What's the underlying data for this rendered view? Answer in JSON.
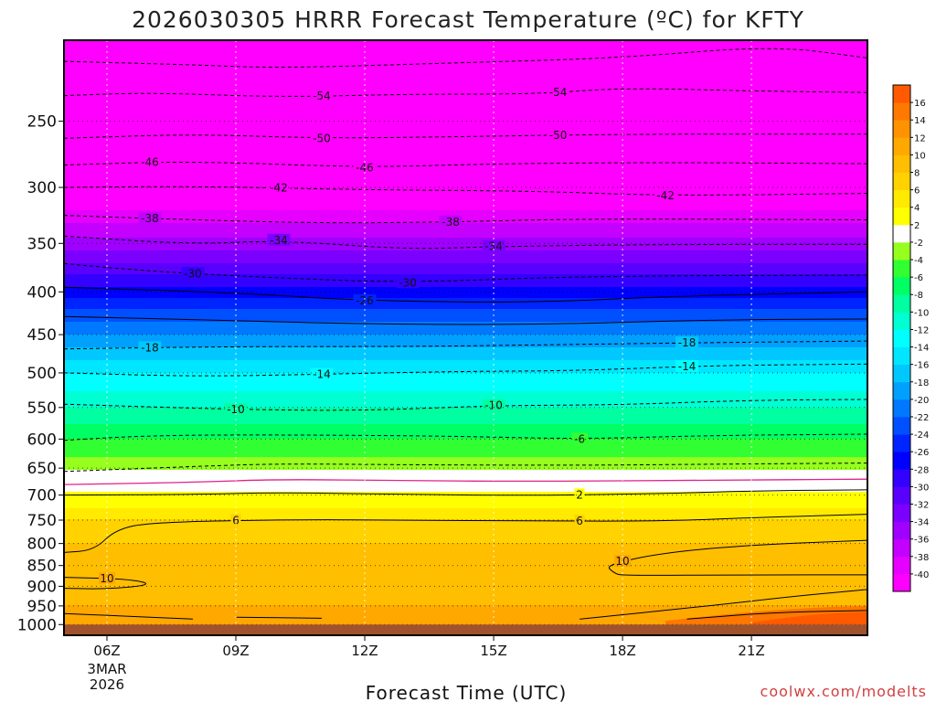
{
  "title": "2026030305 HRRR Forecast Temperature (ºC) for KFTY",
  "credit": "coolwx.com/modelts",
  "colors": {
    "credit": "#d23f3f",
    "plot_border": "#000000",
    "freezing_line": "#e0218a",
    "ground": "#a0522d"
  },
  "chart_data": {
    "type": "heatmap",
    "title": "2026030305 HRRR Forecast Temperature (ºC) for KFTY",
    "xlabel": "Forecast Time (UTC)",
    "ylabel": "",
    "x_range_hours": [
      5,
      23.7
    ],
    "y_range_hpa": [
      200,
      1030
    ],
    "y_scale": "log-pressure",
    "y_ticks": [
      250,
      300,
      350,
      400,
      450,
      500,
      550,
      600,
      650,
      700,
      750,
      800,
      850,
      900,
      950,
      1000
    ],
    "x_ticks": [
      {
        "hour": 6,
        "label": "06Z",
        "date_line1": "3MAR",
        "date_line2": "2026"
      },
      {
        "hour": 9,
        "label": "09Z"
      },
      {
        "hour": 12,
        "label": "12Z"
      },
      {
        "hour": 15,
        "label": "15Z"
      },
      {
        "hour": 18,
        "label": "18Z"
      },
      {
        "hour": 21,
        "label": "21Z"
      }
    ],
    "ground_pressure_hpa": 1000,
    "temperature_profile": [
      {
        "p": 215,
        "t": -60
      },
      {
        "p": 230,
        "t": -56
      },
      {
        "p": 250,
        "t": -52
      },
      {
        "p": 275,
        "t": -48
      },
      {
        "p": 300,
        "t": -44
      },
      {
        "p": 325,
        "t": -39
      },
      {
        "p": 350,
        "t": -35
      },
      {
        "p": 375,
        "t": -31
      },
      {
        "p": 400,
        "t": -27
      },
      {
        "p": 425,
        "t": -23
      },
      {
        "p": 450,
        "t": -20
      },
      {
        "p": 475,
        "t": -17
      },
      {
        "p": 500,
        "t": -14
      },
      {
        "p": 525,
        "t": -12
      },
      {
        "p": 550,
        "t": -10
      },
      {
        "p": 575,
        "t": -8
      },
      {
        "p": 600,
        "t": -6
      },
      {
        "p": 625,
        "t": -4.5
      },
      {
        "p": 650,
        "t": -2.5
      },
      {
        "p": 660,
        "t": -1
      },
      {
        "p": 668,
        "t": 0
      },
      {
        "p": 680,
        "t": 1
      },
      {
        "p": 700,
        "t": 2.5
      },
      {
        "p": 725,
        "t": 4
      },
      {
        "p": 750,
        "t": 6
      },
      {
        "p": 775,
        "t": 7
      },
      {
        "p": 800,
        "t": 8
      },
      {
        "p": 850,
        "t": 9
      },
      {
        "p": 900,
        "t": 9.5
      },
      {
        "p": 950,
        "t": 10
      },
      {
        "p": 1000,
        "t": 11
      }
    ],
    "contour_lines": [
      {
        "value": -58,
        "style": "dashed",
        "points": [
          [
            5,
            212
          ],
          [
            8,
            214
          ],
          [
            10,
            216
          ],
          [
            14,
            213
          ],
          [
            18,
            210
          ],
          [
            21.5,
            203
          ],
          [
            23.7,
            210
          ]
        ]
      },
      {
        "value": -54,
        "style": "dashed",
        "labels_at": [
          11,
          16.5
        ],
        "points": [
          [
            5,
            233
          ],
          [
            7,
            231
          ],
          [
            10,
            234
          ],
          [
            13,
            232
          ],
          [
            16,
            232
          ],
          [
            18,
            228
          ],
          [
            21,
            230
          ],
          [
            23.7,
            231
          ]
        ]
      },
      {
        "value": -50,
        "style": "dashed",
        "labels_at": [
          11,
          16.5
        ],
        "points": [
          [
            5,
            262
          ],
          [
            8,
            259
          ],
          [
            11,
            262
          ],
          [
            14,
            261
          ],
          [
            18,
            259
          ],
          [
            23.7,
            259
          ]
        ]
      },
      {
        "value": -46,
        "style": "dashed",
        "labels_at": [
          7,
          12
        ],
        "points": [
          [
            5,
            282
          ],
          [
            8,
            279
          ],
          [
            12,
            284
          ],
          [
            15,
            281
          ],
          [
            19,
            280
          ],
          [
            23.7,
            281
          ]
        ]
      },
      {
        "value": -42,
        "style": "dashed",
        "labels_at": [
          10,
          19
        ],
        "points": [
          [
            5,
            300
          ],
          [
            8,
            299
          ],
          [
            12,
            302
          ],
          [
            16,
            303
          ],
          [
            19,
            307
          ],
          [
            23.7,
            305
          ]
        ]
      },
      {
        "value": -38,
        "style": "dashed",
        "labels_at": [
          7,
          14
        ],
        "points": [
          [
            5,
            324
          ],
          [
            8,
            328
          ],
          [
            11,
            331
          ],
          [
            14,
            330
          ],
          [
            17,
            327
          ],
          [
            23.7,
            328
          ]
        ]
      },
      {
        "value": -34,
        "style": "dashed",
        "labels_at": [
          10,
          15
        ],
        "points": [
          [
            5,
            343
          ],
          [
            8,
            351
          ],
          [
            10,
            347
          ],
          [
            13,
            356
          ],
          [
            15,
            353
          ],
          [
            19,
            351
          ],
          [
            23.7,
            351
          ]
        ]
      },
      {
        "value": -30,
        "style": "dashed",
        "labels_at": [
          8,
          13
        ],
        "points": [
          [
            5,
            370
          ],
          [
            7,
            378
          ],
          [
            10,
            385
          ],
          [
            13,
            390
          ],
          [
            17,
            383
          ],
          [
            23.7,
            382
          ]
        ]
      },
      {
        "value": -26,
        "style": "solid",
        "labels_at": [
          12
        ],
        "points": [
          [
            5,
            395
          ],
          [
            9,
            401
          ],
          [
            12,
            410
          ],
          [
            16,
            412
          ],
          [
            19,
            405
          ],
          [
            23.7,
            400
          ]
        ]
      },
      {
        "value": -22,
        "style": "solid",
        "points": [
          [
            5,
            428
          ],
          [
            9,
            433
          ],
          [
            12,
            437
          ],
          [
            16,
            438
          ],
          [
            20,
            432
          ],
          [
            23.7,
            431
          ]
        ]
      },
      {
        "value": -18,
        "style": "dashed",
        "labels_at": [
          7,
          19.5
        ],
        "points": [
          [
            5,
            468
          ],
          [
            9,
            465
          ],
          [
            13,
            465
          ],
          [
            16,
            463
          ],
          [
            20,
            460
          ],
          [
            23.7,
            458
          ]
        ]
      },
      {
        "value": -14,
        "style": "dashed",
        "labels_at": [
          11,
          19.5
        ],
        "points": [
          [
            5,
            500
          ],
          [
            8,
            505
          ],
          [
            11,
            502
          ],
          [
            14,
            498
          ],
          [
            17,
            497
          ],
          [
            20,
            490
          ],
          [
            23.7,
            488
          ]
        ]
      },
      {
        "value": -10,
        "style": "dashed",
        "labels_at": [
          9,
          15
        ],
        "points": [
          [
            5,
            545
          ],
          [
            9,
            553
          ],
          [
            12,
            555
          ],
          [
            15,
            547
          ],
          [
            18,
            546
          ],
          [
            21,
            539
          ],
          [
            23.7,
            538
          ]
        ]
      },
      {
        "value": -6,
        "style": "dashed",
        "labels_at": [
          17
        ],
        "points": [
          [
            5,
            602
          ],
          [
            7,
            594
          ],
          [
            10,
            593
          ],
          [
            14,
            595
          ],
          [
            17,
            600
          ],
          [
            20,
            594
          ],
          [
            23.7,
            592
          ]
        ]
      },
      {
        "value": -2,
        "style": "dashed",
        "points": [
          [
            5,
            656
          ],
          [
            8,
            647
          ],
          [
            10,
            642
          ],
          [
            13,
            644
          ],
          [
            17,
            645
          ],
          [
            20,
            643
          ],
          [
            23.7,
            641
          ]
        ]
      },
      {
        "value": 0,
        "style": "solid",
        "color": "freezing",
        "points": [
          [
            5,
            680
          ],
          [
            8,
            676
          ],
          [
            10,
            670
          ],
          [
            13,
            673
          ],
          [
            16,
            674
          ],
          [
            20,
            672
          ],
          [
            23.7,
            670
          ]
        ]
      },
      {
        "value": 2,
        "style": "solid",
        "labels_at": [
          17
        ],
        "points": [
          [
            5,
            700
          ],
          [
            8,
            699
          ],
          [
            10,
            695
          ],
          [
            13,
            699
          ],
          [
            16,
            701
          ],
          [
            19,
            697
          ],
          [
            21,
            692
          ],
          [
            23.7,
            690
          ]
        ]
      },
      {
        "value": 6,
        "style": "solid",
        "labels_at": [
          9,
          17
        ],
        "points": [
          [
            5,
            820
          ],
          [
            5.7,
            815
          ],
          [
            6.2,
            770
          ],
          [
            7,
            755
          ],
          [
            10,
            749
          ],
          [
            13,
            750
          ],
          [
            16,
            752
          ],
          [
            19,
            752
          ],
          [
            21,
            745
          ],
          [
            23.7,
            738
          ]
        ]
      },
      {
        "value": 10,
        "style": "solid",
        "labels_at": [
          18
        ],
        "points": [
          [
            23.7,
            793
          ],
          [
            21,
            803
          ],
          [
            19,
            820
          ],
          [
            17.6,
            848
          ],
          [
            17.8,
            868
          ],
          [
            18,
            874
          ],
          [
            21,
            872
          ],
          [
            23.7,
            872
          ]
        ]
      },
      {
        "value": 10,
        "style": "solid",
        "labels_at": [
          6
        ],
        "points": [
          [
            5,
            878
          ],
          [
            6.5,
            882
          ],
          [
            7.1,
            896
          ],
          [
            6,
            907
          ],
          [
            5,
            905
          ]
        ]
      },
      {
        "value": 14,
        "style": "solid",
        "points": [
          [
            17,
            985
          ],
          [
            20,
            950
          ],
          [
            22,
            925
          ],
          [
            23.7,
            908
          ]
        ]
      },
      {
        "value": 18,
        "style": "solid",
        "points": [
          [
            19.5,
            985
          ],
          [
            21.5,
            967
          ],
          [
            23.7,
            962
          ]
        ]
      },
      {
        "value": 10,
        "style": "solid",
        "points": [
          [
            5,
            970
          ],
          [
            6,
            975
          ],
          [
            8,
            985
          ]
        ]
      },
      {
        "value": 10,
        "style": "solid",
        "points": [
          [
            9,
            980
          ],
          [
            11,
            983
          ]
        ]
      }
    ],
    "colorbar": {
      "levels": [
        -42,
        -40,
        -38,
        -36,
        -34,
        -32,
        -30,
        -28,
        -26,
        -24,
        -22,
        -20,
        -18,
        -16,
        -14,
        -12,
        -10,
        -8,
        -6,
        -4,
        -2,
        2,
        4,
        6,
        8,
        10,
        12,
        14,
        16,
        18
      ],
      "labels": [
        "-40",
        "-38",
        "-36",
        "-34",
        "-32",
        "-30",
        "-28",
        "-26",
        "-24",
        "-22",
        "-20",
        "-18",
        "-16",
        "-14",
        "-12",
        "-10",
        "-8",
        "-6",
        "-4",
        "-2",
        "2",
        "4",
        "6",
        "8",
        "10",
        "12",
        "14",
        "16"
      ],
      "colors": [
        "#ff00ff",
        "#e600ff",
        "#c400ff",
        "#a000ff",
        "#7c00ff",
        "#5a00ff",
        "#3400ff",
        "#0000ff",
        "#0024ff",
        "#0050ff",
        "#0078ff",
        "#00a0ff",
        "#00c8ff",
        "#00e6ff",
        "#00ffff",
        "#00ffd2",
        "#00ffa0",
        "#00ff64",
        "#32ff32",
        "#96ff1e",
        "#ffffff",
        "#ffff00",
        "#ffea00",
        "#ffd200",
        "#ffbe00",
        "#ffa800",
        "#ff9200",
        "#ff7800",
        "#ff5a00"
      ]
    }
  }
}
